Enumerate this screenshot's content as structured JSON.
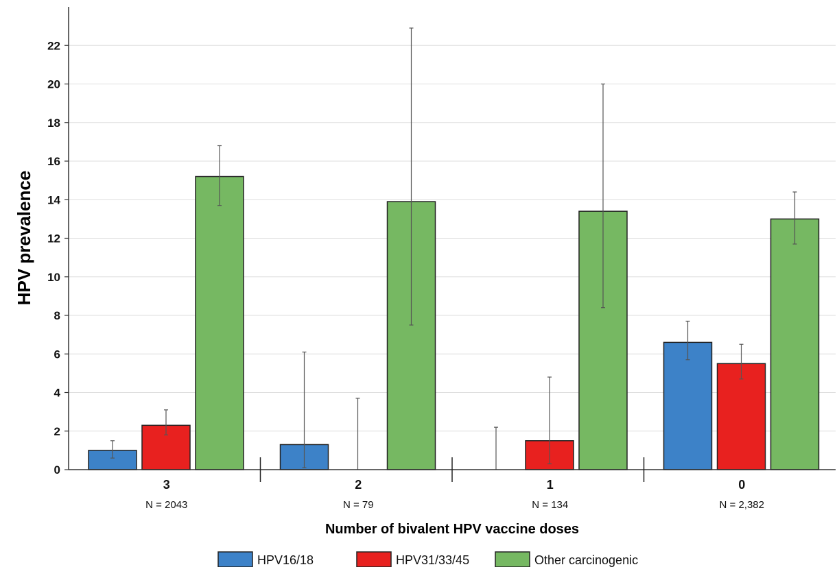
{
  "chart_data": {
    "type": "bar",
    "title": "",
    "xlabel": "Number of bivalent HPV vaccine doses",
    "ylabel": "HPV prevalence",
    "ylim": [
      0,
      24
    ],
    "yticks": [
      0,
      2,
      4,
      6,
      8,
      10,
      12,
      14,
      16,
      18,
      20,
      22
    ],
    "grid": "horizontal",
    "legend_position": "bottom",
    "categories": [
      "3",
      "2",
      "1",
      "0"
    ],
    "category_sublabels": [
      "N = 2043",
      "N = 79",
      "N = 134",
      "N = 2,382"
    ],
    "series": [
      {
        "name": "HPV16/18",
        "color": "#3d82c8",
        "values": [
          1.0,
          1.3,
          0,
          6.6
        ],
        "error_low": [
          0.6,
          0.1,
          0,
          5.7
        ],
        "error_high": [
          1.5,
          6.1,
          2.2,
          7.7
        ]
      },
      {
        "name": "HPV31/33/45",
        "color": "#e8211f",
        "values": [
          2.3,
          0,
          1.5,
          5.5
        ],
        "error_low": [
          1.8,
          0,
          0.3,
          4.7
        ],
        "error_high": [
          3.1,
          3.7,
          4.8,
          6.5
        ]
      },
      {
        "name": "Other carcinogenic",
        "color": "#76b862",
        "values": [
          15.2,
          13.9,
          13.4,
          13.0
        ],
        "error_low": [
          13.7,
          7.5,
          8.4,
          11.7
        ],
        "error_high": [
          16.8,
          22.9,
          20.0,
          14.4
        ]
      }
    ]
  }
}
